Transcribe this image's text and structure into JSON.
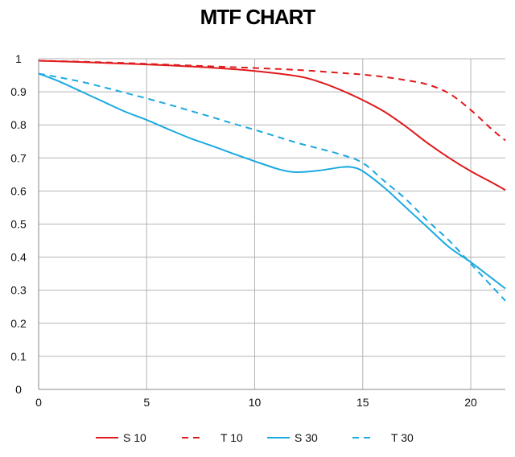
{
  "chart_data": {
    "type": "line",
    "title": "MTF CHART",
    "xlabel": "",
    "ylabel": "",
    "xlim": [
      0,
      21.6
    ],
    "ylim": [
      0,
      1
    ],
    "x_ticks": [
      0,
      5,
      10,
      15,
      20
    ],
    "y_ticks": [
      0,
      0.1,
      0.2,
      0.3,
      0.4,
      0.5,
      0.6,
      0.7,
      0.8,
      0.9,
      1
    ],
    "grid": true,
    "legend_position": "bottom",
    "series": [
      {
        "name": "S 10",
        "color": "#e0191c",
        "style": "solid",
        "x": [
          0,
          2,
          4,
          6,
          8,
          10,
          12,
          13,
          14,
          15,
          16,
          17,
          18,
          19,
          20,
          21,
          21.6
        ],
        "y": [
          0.994,
          0.99,
          0.985,
          0.98,
          0.973,
          0.963,
          0.947,
          0.93,
          0.905,
          0.875,
          0.84,
          0.795,
          0.745,
          0.7,
          0.66,
          0.625,
          0.603
        ]
      },
      {
        "name": "T 10",
        "color": "#e0191c",
        "style": "dashed",
        "x": [
          0,
          2,
          4,
          6,
          8,
          10,
          12,
          14,
          15,
          16,
          17,
          18,
          19,
          20,
          21,
          21.6
        ],
        "y": [
          0.994,
          0.991,
          0.987,
          0.982,
          0.977,
          0.972,
          0.966,
          0.957,
          0.952,
          0.945,
          0.935,
          0.922,
          0.895,
          0.845,
          0.785,
          0.753
        ]
      },
      {
        "name": "S 30",
        "color": "#1ba9e1",
        "style": "solid",
        "x": [
          0,
          1,
          2,
          3,
          4,
          5,
          6,
          7,
          8,
          9,
          10,
          11,
          11.5,
          12,
          13,
          14,
          14.5,
          15,
          16,
          17,
          18,
          19,
          20,
          21,
          21.6
        ],
        "y": [
          0.955,
          0.93,
          0.9,
          0.87,
          0.84,
          0.815,
          0.787,
          0.76,
          0.737,
          0.713,
          0.69,
          0.668,
          0.66,
          0.657,
          0.662,
          0.672,
          0.672,
          0.66,
          0.61,
          0.55,
          0.49,
          0.43,
          0.385,
          0.335,
          0.305
        ]
      },
      {
        "name": "T 30",
        "color": "#1ba9e1",
        "style": "dashed",
        "x": [
          0,
          1,
          2,
          3,
          4,
          5,
          6,
          7,
          8,
          9,
          10,
          11,
          12,
          13,
          14,
          15,
          16,
          17,
          18,
          19,
          20,
          21,
          21.6
        ],
        "y": [
          0.955,
          0.943,
          0.93,
          0.914,
          0.897,
          0.88,
          0.862,
          0.843,
          0.824,
          0.804,
          0.785,
          0.765,
          0.745,
          0.728,
          0.71,
          0.685,
          0.63,
          0.575,
          0.51,
          0.45,
          0.38,
          0.31,
          0.268
        ]
      }
    ]
  }
}
